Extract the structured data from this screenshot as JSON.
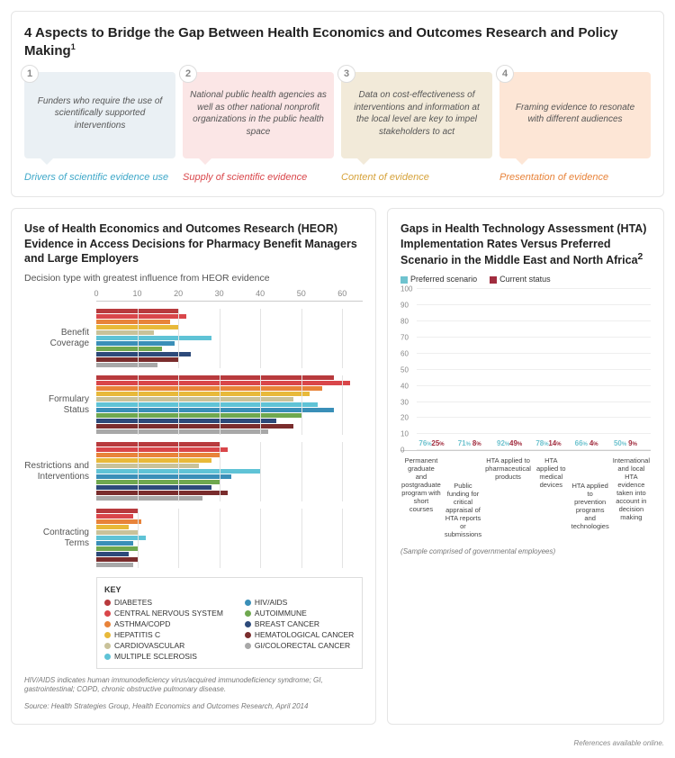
{
  "top": {
    "title": "4 Aspects to Bridge the Gap Between Health Economics and Outcomes Research and Policy Making",
    "sup": "1",
    "aspects": [
      {
        "n": "1",
        "text": "Funders who require the use of scientifically supported interventions",
        "label": "Drivers of scientific evidence use",
        "bg": "#eaf0f4",
        "tail": "#eaf0f4",
        "color": "#3fa8c9"
      },
      {
        "n": "2",
        "text": "National public health agencies as well as other national nonprofit organizations in the public health space",
        "label": "Supply of scientific evidence",
        "bg": "#fbe6e6",
        "tail": "#fbe6e6",
        "color": "#d9464a"
      },
      {
        "n": "3",
        "text": "Data on cost-effectiveness of interventions and information at the local level are key to impel stakeholders to act",
        "label": "Content of evidence",
        "bg": "#f2ead9",
        "tail": "#f2ead9",
        "color": "#d6a23a"
      },
      {
        "n": "4",
        "text": "Framing evidence to resonate with different audiences",
        "label": "Presentation of evidence",
        "bg": "#fde6d6",
        "tail": "#fde6d6",
        "color": "#e8833a"
      }
    ]
  },
  "heor": {
    "title": "Use of Health Economics and Outcomes Research (HEOR) Evidence in Access Decisions for Pharmacy Benefit Managers and Large Employers",
    "sub": "Decision type with greatest influence from HEOR evidence",
    "xticks": [
      0,
      10,
      20,
      30,
      40,
      50,
      60
    ],
    "xmax": 65,
    "series": [
      {
        "name": "DIABETES",
        "color": "#b83a3d"
      },
      {
        "name": "CENTRAL NERVOUS SYSTEM",
        "color": "#d9464a"
      },
      {
        "name": "ASTHMA/COPD",
        "color": "#e8833a"
      },
      {
        "name": "HEPATITIS C",
        "color": "#e8b93a"
      },
      {
        "name": "CARDIOVASCULAR",
        "color": "#c9c29a"
      },
      {
        "name": "MULTIPLE SCLEROSIS",
        "color": "#5fc3d6"
      },
      {
        "name": "HIV/AIDS",
        "color": "#3a8fb8"
      },
      {
        "name": "AUTOIMMUNE",
        "color": "#6fa84f"
      },
      {
        "name": "BREAST CANCER",
        "color": "#2d4a7a"
      },
      {
        "name": "HEMATOLOGICAL CANCER",
        "color": "#7a2d2d"
      },
      {
        "name": "GI/COLORECTAL CANCER",
        "color": "#a8a8a8"
      }
    ],
    "groups": [
      {
        "label": "Benefit Coverage",
        "vals": [
          20,
          22,
          18,
          20,
          14,
          28,
          19,
          16,
          23,
          20,
          15
        ]
      },
      {
        "label": "Formulary Status",
        "vals": [
          58,
          62,
          55,
          52,
          48,
          54,
          58,
          50,
          44,
          48,
          42
        ]
      },
      {
        "label": "Restrictions and Interventions",
        "vals": [
          30,
          32,
          30,
          28,
          25,
          40,
          33,
          30,
          28,
          32,
          26
        ]
      },
      {
        "label": "Contracting Terms",
        "vals": [
          10,
          9,
          11,
          8,
          10,
          12,
          9,
          10,
          8,
          10,
          9
        ]
      }
    ],
    "foot1": "HIV/AIDS indicates human immunodeficiency virus/acquired immunodeficiency syndrome; GI, gastrointestinal; COPD, chronic obstructive pulmonary disease.",
    "foot2": "Source: Health Strategies Group, Health Economics and Outcomes Research, April 2014"
  },
  "hta": {
    "title": "Gaps in Health Technology Assessment (HTA) Implementation Rates Versus Preferred Scenario in the Middle East and North Africa",
    "sup": "2",
    "legend": [
      {
        "label": "Preferred scenario",
        "color": "#6fc3cf"
      },
      {
        "label": "Current status",
        "color": "#a12d3f"
      }
    ],
    "ymax": 100,
    "ystep": 10,
    "pref_color": "#6fc3cf",
    "cur_color": "#a12d3f",
    "items": [
      {
        "cat": "Permanent graduate and postgraduate program with short courses",
        "pref": 76,
        "cur": 25,
        "stag": false
      },
      {
        "cat": "Public funding for critical appraisal of HTA reports or submissions",
        "pref": 71,
        "cur": 8,
        "stag": true
      },
      {
        "cat": "HTA applied to pharmaceutical products",
        "pref": 92,
        "cur": 49,
        "stag": false
      },
      {
        "cat": "HTA applied to medical devices",
        "pref": 78,
        "cur": 14,
        "stag": false
      },
      {
        "cat": "HTA applied to prevention programs and technologies",
        "pref": 66,
        "cur": 4,
        "stag": true
      },
      {
        "cat": "International and local HTA evidence taken into account in decision making",
        "pref": 50,
        "cur": 9,
        "stag": false
      }
    ],
    "sample": "(Sample comprised of governmental employees)"
  },
  "refs": "References available online."
}
